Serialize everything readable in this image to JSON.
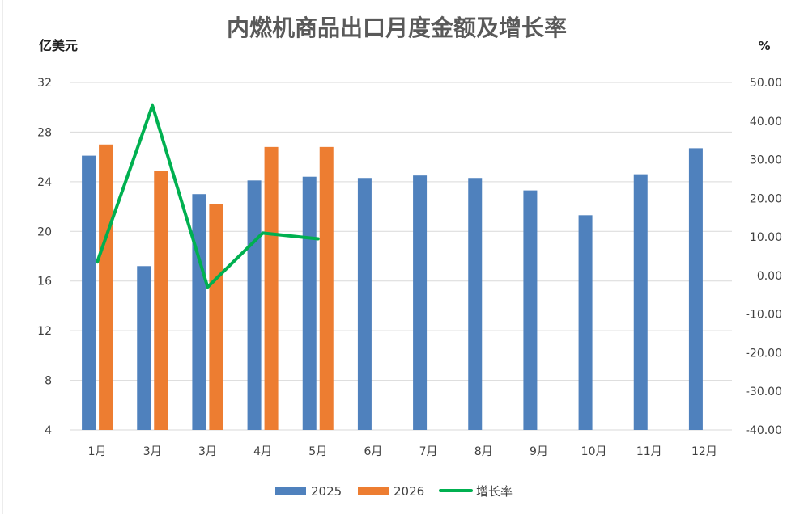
{
  "chart_data": {
    "type": "bar",
    "title": "内燃机商品出口月度金额及增长率",
    "ylabel_left": "亿美元",
    "ylabel_right": "%",
    "categories": [
      "1月",
      "3月",
      "3月",
      "4月",
      "5月",
      "6月",
      "7月",
      "8月",
      "9月",
      "10月",
      "11月",
      "12月"
    ],
    "y_left": {
      "min": 4,
      "max": 32,
      "ticks": [
        "4",
        "8",
        "12",
        "16",
        "20",
        "24",
        "28",
        "32"
      ]
    },
    "y_right": {
      "min": -40,
      "max": 50,
      "ticks": [
        "-40.00",
        "-30.00",
        "-20.00",
        "-10.00",
        "0.00",
        "10.00",
        "20.00",
        "30.00",
        "40.00",
        "50.00"
      ]
    },
    "grid": true,
    "legend_position": "bottom",
    "series": [
      {
        "name": "2025",
        "type": "bar",
        "axis": "left",
        "color": "#4F81BD",
        "values": [
          26.1,
          17.2,
          23.0,
          24.1,
          24.4,
          24.3,
          24.5,
          24.3,
          23.3,
          21.3,
          24.6,
          26.7
        ]
      },
      {
        "name": "2026",
        "type": "bar",
        "axis": "left",
        "color": "#ED7D31",
        "values": [
          27.0,
          24.9,
          22.2,
          26.8,
          26.8,
          null,
          null,
          null,
          null,
          null,
          null,
          null
        ]
      },
      {
        "name": "增长率",
        "type": "line",
        "axis": "right",
        "color": "#00B050",
        "values": [
          3.5,
          44.0,
          -3.0,
          11.0,
          9.5,
          null,
          null,
          null,
          null,
          null,
          null,
          null
        ]
      }
    ]
  }
}
